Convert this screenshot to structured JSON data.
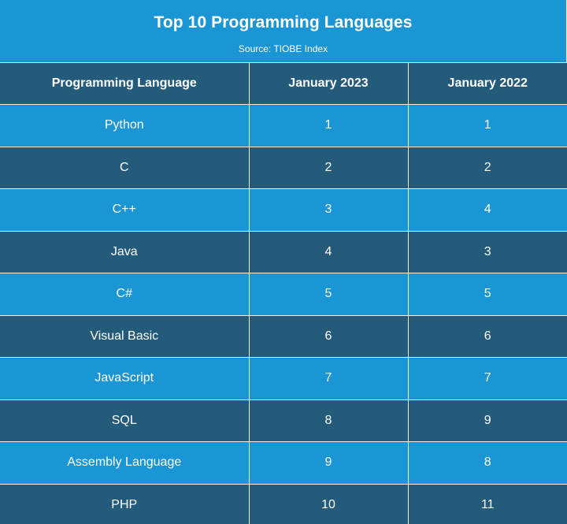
{
  "chart_data": {
    "type": "table",
    "title": "Top 10 Programming Languages",
    "subtitle": "Source: TIOBE Index",
    "columns": [
      "Programming Language",
      "January 2023",
      "January 2022"
    ],
    "rows": [
      {
        "language": "Python",
        "jan2023": "1",
        "jan2022": "1"
      },
      {
        "language": "C",
        "jan2023": "2",
        "jan2022": "2"
      },
      {
        "language": "C++",
        "jan2023": "3",
        "jan2022": "4"
      },
      {
        "language": "Java",
        "jan2023": "4",
        "jan2022": "3"
      },
      {
        "language": "C#",
        "jan2023": "5",
        "jan2022": "5"
      },
      {
        "language": "Visual Basic",
        "jan2023": "6",
        "jan2022": "6"
      },
      {
        "language": "JavaScript",
        "jan2023": "7",
        "jan2022": "7"
      },
      {
        "language": "SQL",
        "jan2023": "8",
        "jan2022": "9"
      },
      {
        "language": "Assembly Language",
        "jan2023": "9",
        "jan2022": "8"
      },
      {
        "language": "PHP",
        "jan2023": "10",
        "jan2022": "11"
      }
    ]
  },
  "colors": {
    "light_row": "#1b96d4",
    "dark_row": "#255b7a",
    "grid": "#e8eef3",
    "text": "#ffffff"
  }
}
